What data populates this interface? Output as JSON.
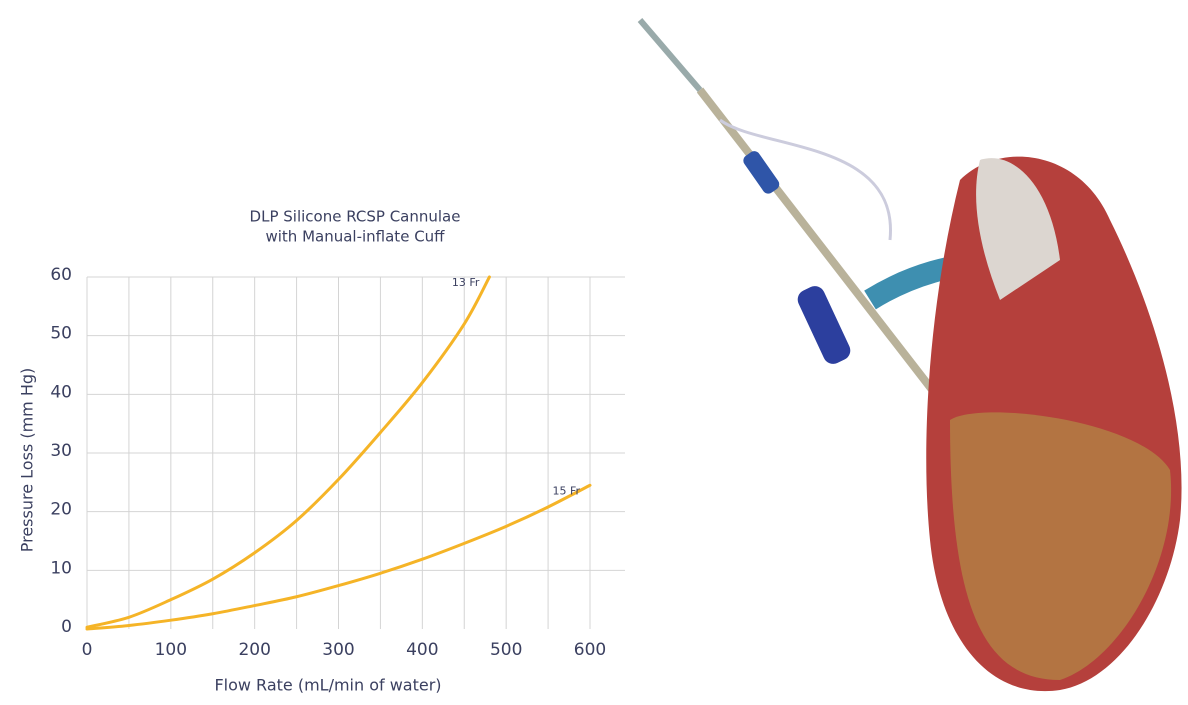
{
  "chart_data": {
    "type": "line",
    "title": [
      "DLP Silicone RCSP Cannulae",
      "with Manual-inflate Cuff"
    ],
    "x_label": "Flow Rate (mL/min of water)",
    "y_label": "Pressure Loss (mm Hg)",
    "xlim": [
      0,
      600
    ],
    "ylim": [
      0,
      60
    ],
    "xticks": [
      0,
      {
        "value": 50,
        "label": null
      },
      100,
      {
        "value": 150,
        "label": null
      },
      200,
      {
        "value": 250,
        "label": null
      },
      300,
      {
        "value": 350,
        "label": null
      },
      400,
      {
        "value": 450,
        "label": null
      },
      500,
      {
        "value": 550,
        "label": null
      },
      600
    ],
    "yticks": [
      0,
      10,
      20,
      30,
      40,
      50,
      60
    ],
    "grid": true,
    "series": [
      {
        "name": "13 Fr",
        "color": "#f5b427",
        "x": [
          0,
          50,
          100,
          150,
          200,
          250,
          300,
          350,
          400,
          450,
          480
        ],
        "values": [
          0.3,
          2,
          5,
          8.5,
          13,
          18.5,
          25.5,
          33.5,
          42,
          52,
          60
        ]
      },
      {
        "name": "15 Fr",
        "color": "#f5b427",
        "x": [
          0,
          50,
          100,
          150,
          200,
          250,
          300,
          350,
          400,
          450,
          500,
          550,
          600
        ],
        "values": [
          0,
          0.6,
          1.5,
          2.6,
          4,
          5.5,
          7.4,
          9.5,
          11.9,
          14.6,
          17.5,
          20.8,
          24.5
        ]
      }
    ]
  }
}
